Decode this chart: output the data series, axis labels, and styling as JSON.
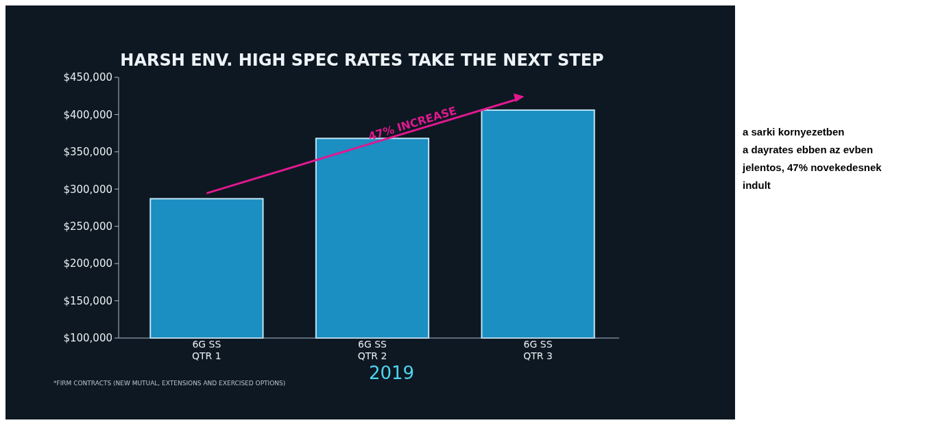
{
  "chart_data": {
    "type": "bar",
    "title": "HARSH ENV. HIGH SPEC RATES TAKE THE NEXT STEP",
    "xlabel": "2019",
    "categories": [
      "6G SS\nQTR 1",
      "6G SS\nQTR 2",
      "6G SS\nQTR 3"
    ],
    "values": [
      287000,
      368000,
      406000
    ],
    "color": "#1b8ec2",
    "ylim": [
      100000,
      450000
    ],
    "yticks": [
      {
        "value": 100000,
        "label": "$100,000"
      },
      {
        "value": 150000,
        "label": "$150,000"
      },
      {
        "value": 200000,
        "label": "$200,000"
      },
      {
        "value": 250000,
        "label": "$250,000"
      },
      {
        "value": 300000,
        "label": "$300,000"
      },
      {
        "value": 350000,
        "label": "$350,000"
      },
      {
        "value": 400000,
        "label": "$400,000"
      },
      {
        "value": 450000,
        "label": "$450,000"
      }
    ],
    "annotations": [
      "47% INCREASE",
      "*FIRM CONTRACTS (NEW MUTUAL, EXTENSIONS AND EXERCISED OPTIONS)",
      "a sarki kornyezetben\na dayrates ebben az evben\njelentos, 47% novekedesnek\nindult"
    ]
  }
}
